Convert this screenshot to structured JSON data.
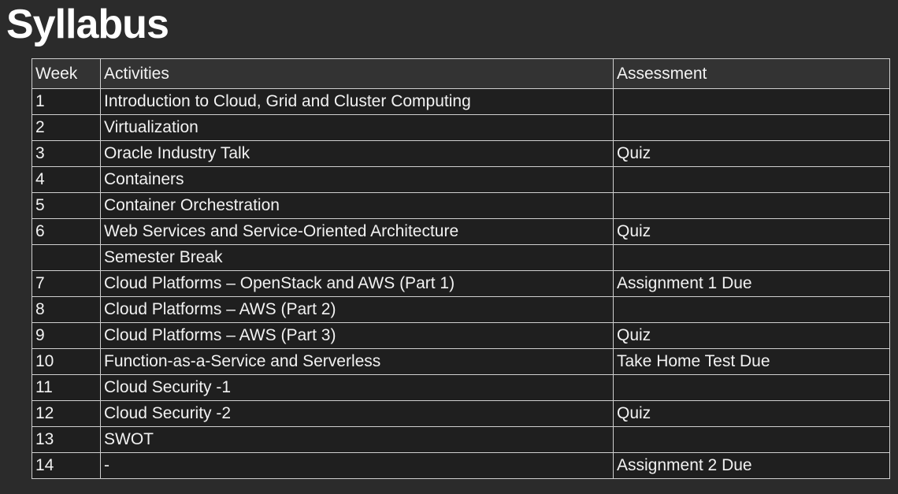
{
  "page": {
    "title": "Syllabus"
  },
  "table": {
    "headers": {
      "week": "Week",
      "activities": "Activities",
      "assessment": "Assessment"
    },
    "rows": [
      {
        "week": "1",
        "activity": "Introduction to Cloud, Grid and Cluster Computing",
        "assessment": ""
      },
      {
        "week": "2",
        "activity": "Virtualization",
        "assessment": ""
      },
      {
        "week": "3",
        "activity": "Oracle Industry Talk",
        "assessment": "Quiz"
      },
      {
        "week": "4",
        "activity": "Containers",
        "assessment": ""
      },
      {
        "week": "5",
        "activity": "Container Orchestration",
        "assessment": ""
      },
      {
        "week": "6",
        "activity": "Web Services and Service-Oriented Architecture",
        "assessment": "Quiz"
      },
      {
        "week": "",
        "activity": "Semester Break",
        "assessment": ""
      },
      {
        "week": "7",
        "activity": "Cloud Platforms – OpenStack and AWS (Part 1)",
        "assessment": "Assignment 1 Due"
      },
      {
        "week": "8",
        "activity": "Cloud Platforms – AWS (Part 2)",
        "assessment": ""
      },
      {
        "week": "9",
        "activity": "Cloud Platforms – AWS (Part 3)",
        "assessment": "Quiz"
      },
      {
        "week": "10",
        "activity": "Function-as-a-Service and Serverless",
        "assessment": "Take Home Test Due"
      },
      {
        "week": "11",
        "activity": "Cloud Security -1",
        "assessment": ""
      },
      {
        "week": "12",
        "activity": "Cloud Security -2",
        "assessment": "Quiz"
      },
      {
        "week": "13",
        "activity": "SWOT",
        "assessment": ""
      },
      {
        "week": "14",
        "activity": "-",
        "assessment": "Assignment 2 Due"
      }
    ]
  }
}
